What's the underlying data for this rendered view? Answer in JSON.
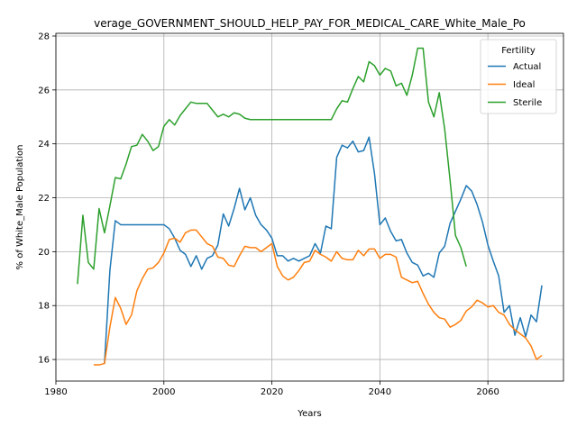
{
  "chart_data": {
    "type": "line",
    "title": "verage_GOVERNMENT_SHOULD_HELP_PAY_FOR_MEDICAL_CARE_White_Male_Po",
    "xlabel": "Years",
    "ylabel": "% of White_Male Population",
    "xlim": [
      1980,
      2074
    ],
    "ylim": [
      15.2,
      28.1
    ],
    "xticks": [
      1980,
      2000,
      2020,
      2040,
      2060
    ],
    "yticks": [
      16,
      18,
      20,
      22,
      24,
      26,
      28
    ],
    "grid": true,
    "legend": {
      "title": "Fertility",
      "placement": "top-right"
    },
    "series": [
      {
        "name": "Actual",
        "color": "#1f77b4",
        "points": [
          [
            1989,
            15.85
          ],
          [
            1990,
            19.3
          ],
          [
            1991,
            21.15
          ],
          [
            1992,
            21.0
          ],
          [
            1993,
            21.0
          ],
          [
            1994,
            21.0
          ],
          [
            1995,
            21.0
          ],
          [
            1996,
            21.0
          ],
          [
            1997,
            21.0
          ],
          [
            1998,
            21.0
          ],
          [
            1999,
            21.0
          ],
          [
            2000,
            21.0
          ],
          [
            2001,
            20.85
          ],
          [
            2002,
            20.5
          ],
          [
            2003,
            20.05
          ],
          [
            2004,
            19.9
          ],
          [
            2005,
            19.45
          ],
          [
            2006,
            19.85
          ],
          [
            2007,
            19.35
          ],
          [
            2008,
            19.75
          ],
          [
            2009,
            19.85
          ],
          [
            2010,
            20.25
          ],
          [
            2011,
            21.4
          ],
          [
            2012,
            20.95
          ],
          [
            2013,
            21.6
          ],
          [
            2014,
            22.35
          ],
          [
            2015,
            21.55
          ],
          [
            2016,
            22.0
          ],
          [
            2017,
            21.35
          ],
          [
            2018,
            21.0
          ],
          [
            2019,
            20.8
          ],
          [
            2020,
            20.5
          ],
          [
            2021,
            19.85
          ],
          [
            2022,
            19.85
          ],
          [
            2023,
            19.65
          ],
          [
            2024,
            19.75
          ],
          [
            2025,
            19.65
          ],
          [
            2026,
            19.75
          ],
          [
            2027,
            19.85
          ],
          [
            2028,
            20.3
          ],
          [
            2029,
            19.95
          ],
          [
            2030,
            20.95
          ],
          [
            2031,
            20.85
          ],
          [
            2032,
            23.5
          ],
          [
            2033,
            23.95
          ],
          [
            2034,
            23.85
          ],
          [
            2035,
            24.1
          ],
          [
            2036,
            23.7
          ],
          [
            2037,
            23.75
          ],
          [
            2038,
            24.25
          ],
          [
            2039,
            22.9
          ],
          [
            2040,
            21.0
          ],
          [
            2041,
            21.25
          ],
          [
            2042,
            20.75
          ],
          [
            2043,
            20.4
          ],
          [
            2044,
            20.45
          ],
          [
            2045,
            19.95
          ],
          [
            2046,
            19.6
          ],
          [
            2047,
            19.5
          ],
          [
            2048,
            19.1
          ],
          [
            2049,
            19.2
          ],
          [
            2050,
            19.05
          ],
          [
            2051,
            19.95
          ],
          [
            2052,
            20.2
          ],
          [
            2053,
            21.05
          ],
          [
            2054,
            21.5
          ],
          [
            2055,
            21.95
          ],
          [
            2056,
            22.45
          ],
          [
            2057,
            22.25
          ],
          [
            2058,
            21.75
          ],
          [
            2059,
            21.1
          ],
          [
            2060,
            20.25
          ],
          [
            2061,
            19.65
          ],
          [
            2062,
            19.1
          ],
          [
            2063,
            17.75
          ],
          [
            2064,
            18.0
          ],
          [
            2065,
            16.9
          ],
          [
            2066,
            17.55
          ],
          [
            2067,
            16.85
          ],
          [
            2068,
            17.65
          ],
          [
            2069,
            17.4
          ],
          [
            2070,
            18.75
          ]
        ]
      },
      {
        "name": "Ideal",
        "color": "#ff7f0e",
        "points": [
          [
            1987,
            15.8
          ],
          [
            1988,
            15.8
          ],
          [
            1989,
            15.85
          ],
          [
            1990,
            17.2
          ],
          [
            1991,
            18.3
          ],
          [
            1992,
            17.9
          ],
          [
            1993,
            17.3
          ],
          [
            1994,
            17.65
          ],
          [
            1995,
            18.55
          ],
          [
            1996,
            19.0
          ],
          [
            1997,
            19.35
          ],
          [
            1998,
            19.4
          ],
          [
            1999,
            19.6
          ],
          [
            2000,
            19.95
          ],
          [
            2001,
            20.45
          ],
          [
            2002,
            20.5
          ],
          [
            2003,
            20.35
          ],
          [
            2004,
            20.7
          ],
          [
            2005,
            20.8
          ],
          [
            2006,
            20.8
          ],
          [
            2007,
            20.55
          ],
          [
            2008,
            20.3
          ],
          [
            2009,
            20.2
          ],
          [
            2010,
            19.8
          ],
          [
            2011,
            19.75
          ],
          [
            2012,
            19.5
          ],
          [
            2013,
            19.45
          ],
          [
            2014,
            19.85
          ],
          [
            2015,
            20.2
          ],
          [
            2016,
            20.15
          ],
          [
            2017,
            20.15
          ],
          [
            2018,
            20.0
          ],
          [
            2019,
            20.15
          ],
          [
            2020,
            20.3
          ],
          [
            2021,
            19.45
          ],
          [
            2022,
            19.1
          ],
          [
            2023,
            18.95
          ],
          [
            2024,
            19.05
          ],
          [
            2025,
            19.3
          ],
          [
            2026,
            19.6
          ],
          [
            2027,
            19.65
          ],
          [
            2028,
            20.05
          ],
          [
            2029,
            19.9
          ],
          [
            2030,
            19.8
          ],
          [
            2031,
            19.65
          ],
          [
            2032,
            20.0
          ],
          [
            2033,
            19.75
          ],
          [
            2034,
            19.7
          ],
          [
            2035,
            19.7
          ],
          [
            2036,
            20.05
          ],
          [
            2037,
            19.85
          ],
          [
            2038,
            20.1
          ],
          [
            2039,
            20.1
          ],
          [
            2040,
            19.75
          ],
          [
            2041,
            19.9
          ],
          [
            2042,
            19.9
          ],
          [
            2043,
            19.8
          ],
          [
            2044,
            19.05
          ],
          [
            2045,
            18.95
          ],
          [
            2046,
            18.85
          ],
          [
            2047,
            18.9
          ],
          [
            2048,
            18.45
          ],
          [
            2049,
            18.05
          ],
          [
            2050,
            17.75
          ],
          [
            2051,
            17.55
          ],
          [
            2052,
            17.5
          ],
          [
            2053,
            17.2
          ],
          [
            2054,
            17.3
          ],
          [
            2055,
            17.45
          ],
          [
            2056,
            17.8
          ],
          [
            2057,
            17.95
          ],
          [
            2058,
            18.2
          ],
          [
            2059,
            18.1
          ],
          [
            2060,
            17.95
          ],
          [
            2061,
            18.0
          ],
          [
            2062,
            17.75
          ],
          [
            2063,
            17.65
          ],
          [
            2064,
            17.3
          ],
          [
            2065,
            17.1
          ],
          [
            2066,
            16.95
          ],
          [
            2067,
            16.8
          ],
          [
            2068,
            16.5
          ],
          [
            2069,
            16.0
          ],
          [
            2070,
            16.15
          ]
        ]
      },
      {
        "name": "Sterile",
        "color": "#2ca02c",
        "points": [
          [
            1984,
            18.8
          ],
          [
            1985,
            21.35
          ],
          [
            1986,
            19.6
          ],
          [
            1987,
            19.35
          ],
          [
            1988,
            21.6
          ],
          [
            1989,
            20.7
          ],
          [
            1990,
            21.7
          ],
          [
            1991,
            22.75
          ],
          [
            1992,
            22.7
          ],
          [
            1993,
            23.25
          ],
          [
            1994,
            23.9
          ],
          [
            1995,
            23.95
          ],
          [
            1996,
            24.35
          ],
          [
            1997,
            24.1
          ],
          [
            1998,
            23.75
          ],
          [
            1999,
            23.9
          ],
          [
            2000,
            24.65
          ],
          [
            2001,
            24.9
          ],
          [
            2002,
            24.7
          ],
          [
            2003,
            25.05
          ],
          [
            2004,
            25.3
          ],
          [
            2005,
            25.55
          ],
          [
            2006,
            25.5
          ],
          [
            2007,
            25.5
          ],
          [
            2008,
            25.5
          ],
          [
            2009,
            25.25
          ],
          [
            2010,
            25.0
          ],
          [
            2011,
            25.1
          ],
          [
            2012,
            25.0
          ],
          [
            2013,
            25.15
          ],
          [
            2014,
            25.1
          ],
          [
            2015,
            24.95
          ],
          [
            2016,
            24.9
          ],
          [
            2017,
            24.9
          ],
          [
            2018,
            24.9
          ],
          [
            2019,
            24.9
          ],
          [
            2020,
            24.9
          ],
          [
            2021,
            24.9
          ],
          [
            2022,
            24.9
          ],
          [
            2023,
            24.9
          ],
          [
            2024,
            24.9
          ],
          [
            2025,
            24.9
          ],
          [
            2026,
            24.9
          ],
          [
            2027,
            24.9
          ],
          [
            2028,
            24.9
          ],
          [
            2029,
            24.9
          ],
          [
            2030,
            24.9
          ],
          [
            2031,
            24.9
          ],
          [
            2032,
            25.3
          ],
          [
            2033,
            25.6
          ],
          [
            2034,
            25.55
          ],
          [
            2035,
            26.05
          ],
          [
            2036,
            26.5
          ],
          [
            2037,
            26.3
          ],
          [
            2038,
            27.05
          ],
          [
            2039,
            26.9
          ],
          [
            2040,
            26.55
          ],
          [
            2041,
            26.8
          ],
          [
            2042,
            26.7
          ],
          [
            2043,
            26.15
          ],
          [
            2044,
            26.25
          ],
          [
            2045,
            25.8
          ],
          [
            2046,
            26.55
          ],
          [
            2047,
            27.55
          ],
          [
            2048,
            27.55
          ],
          [
            2049,
            25.55
          ],
          [
            2050,
            25.0
          ],
          [
            2051,
            25.9
          ],
          [
            2052,
            24.55
          ],
          [
            2053,
            22.65
          ],
          [
            2054,
            20.6
          ],
          [
            2055,
            20.15
          ],
          [
            2056,
            19.45
          ]
        ]
      }
    ]
  }
}
